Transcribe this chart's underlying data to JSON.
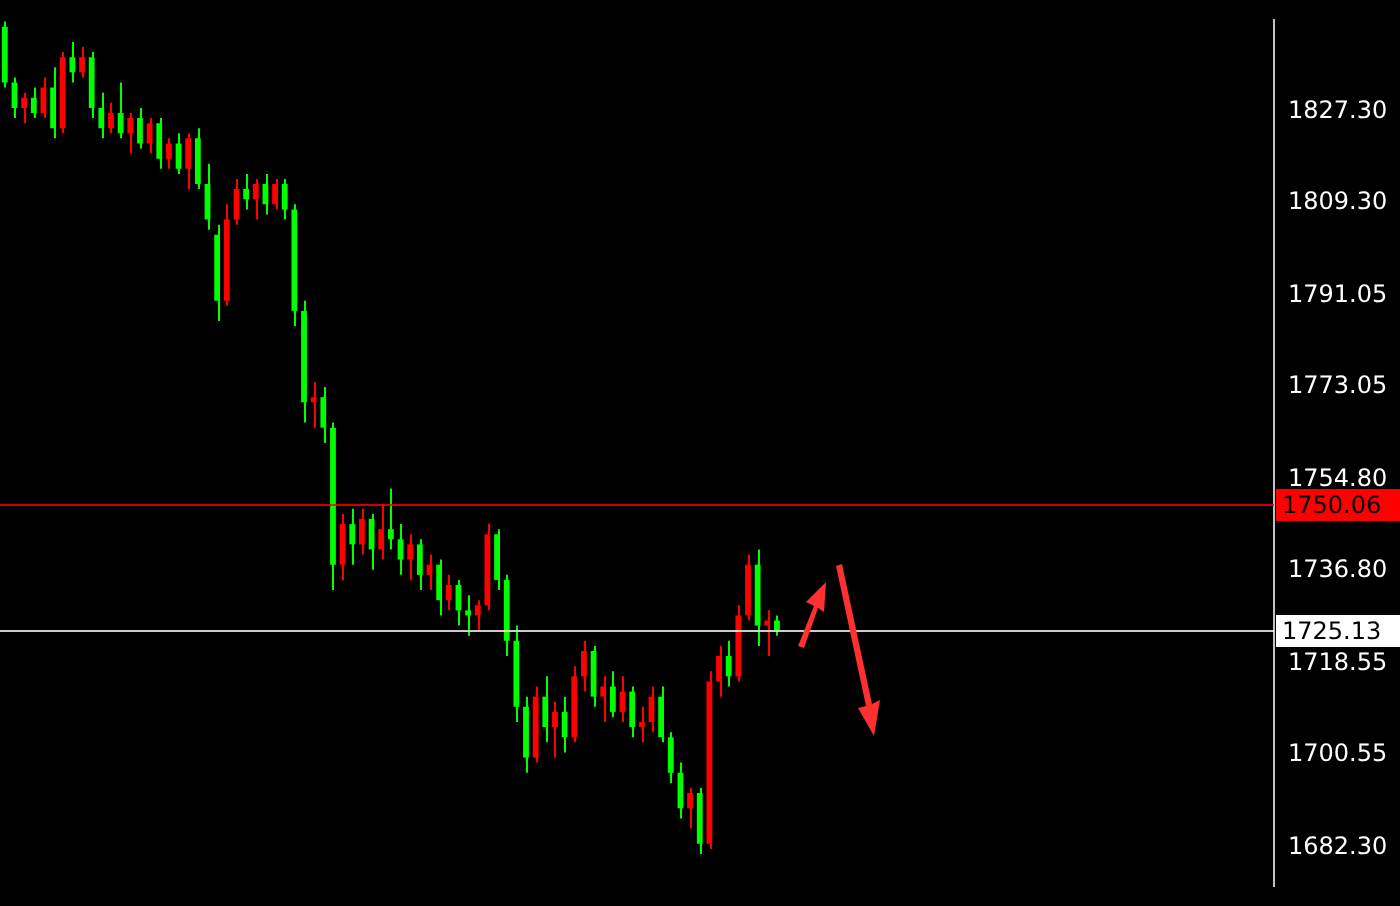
{
  "chart_data": {
    "type": "candlestick",
    "categories": [
      null,
      null,
      null,
      null,
      null,
      null,
      null,
      null,
      null,
      null,
      null,
      null,
      null,
      null,
      null,
      null,
      null,
      null,
      null,
      null,
      null,
      null,
      null,
      null,
      null,
      null,
      null,
      null,
      null,
      null,
      null,
      null,
      null,
      null,
      null,
      null,
      null,
      null,
      null,
      null,
      null,
      null,
      null,
      null,
      null,
      null,
      null,
      null,
      null,
      null,
      null,
      null,
      null,
      null,
      null,
      null,
      null,
      null,
      null,
      null,
      null,
      null,
      null,
      null,
      null,
      null,
      null,
      null,
      null,
      null,
      null,
      null,
      null,
      null,
      null,
      null,
      null,
      null,
      null,
      null,
      null,
      null,
      null,
      null,
      null,
      null,
      null,
      null,
      null,
      null,
      null,
      null,
      null,
      null,
      null,
      null,
      null,
      null,
      null,
      null,
      null,
      null,
      null,
      null,
      null,
      null,
      null,
      null,
      null,
      null,
      null,
      null,
      null,
      null,
      null,
      null,
      null,
      null,
      null,
      null,
      null,
      null,
      null,
      null,
      null,
      null,
      null,
      null,
      null,
      null,
      null,
      null
    ],
    "ohlc": [
      [
        1844,
        1845,
        1832,
        1833
      ],
      [
        1833,
        1834,
        1826,
        1828
      ],
      [
        1828,
        1831,
        1825,
        1830
      ],
      [
        1830,
        1832,
        1826,
        1827
      ],
      [
        1827,
        1834,
        1826,
        1832
      ],
      [
        1832,
        1836,
        1822,
        1824
      ],
      [
        1824,
        1839,
        1823,
        1838
      ],
      [
        1838,
        1841,
        1833,
        1835
      ],
      [
        1835,
        1840,
        1834,
        1838
      ],
      [
        1838,
        1839,
        1826,
        1828
      ],
      [
        1828,
        1831,
        1822,
        1824
      ],
      [
        1824,
        1829,
        1823,
        1827
      ],
      [
        1827,
        1833,
        1822,
        1823
      ],
      [
        1823,
        1827,
        1819,
        1826
      ],
      [
        1826,
        1828,
        1820,
        1821
      ],
      [
        1821,
        1826,
        1819,
        1825
      ],
      [
        1825,
        1826,
        1816,
        1818
      ],
      [
        1818,
        1822,
        1816,
        1821
      ],
      [
        1821,
        1823,
        1815,
        1816
      ],
      [
        1816,
        1823,
        1812,
        1822
      ],
      [
        1822,
        1824,
        1812,
        1813
      ],
      [
        1813,
        1817,
        1804,
        1806
      ],
      [
        1803,
        1805,
        1786,
        1790
      ],
      [
        1790,
        1809,
        1789,
        1806
      ],
      [
        1806,
        1814,
        1805,
        1812
      ],
      [
        1812,
        1815,
        1808,
        1810
      ],
      [
        1810,
        1814,
        1806,
        1813
      ],
      [
        1813,
        1815,
        1807,
        1809
      ],
      [
        1809,
        1814,
        1808,
        1813
      ],
      [
        1813,
        1814,
        1806,
        1808
      ],
      [
        1808,
        1809,
        1785,
        1788
      ],
      [
        1788,
        1790,
        1766,
        1770
      ],
      [
        1770,
        1774,
        1765,
        1771
      ],
      [
        1771,
        1773,
        1762,
        1765
      ],
      [
        1765,
        1766,
        1733,
        1738
      ],
      [
        1738,
        1748,
        1735,
        1746
      ],
      [
        1746,
        1749,
        1738,
        1742
      ],
      [
        1742,
        1749,
        1740,
        1747
      ],
      [
        1747,
        1748,
        1737,
        1741
      ],
      [
        1741,
        1750,
        1739,
        1745
      ],
      [
        1745,
        1753,
        1741,
        1743
      ],
      [
        1743,
        1746,
        1736,
        1739
      ],
      [
        1739,
        1744,
        1735,
        1742
      ],
      [
        1742,
        1743,
        1733,
        1736
      ],
      [
        1736,
        1740,
        1733,
        1738
      ],
      [
        1738,
        1739,
        1728,
        1731
      ],
      [
        1731,
        1736,
        1729,
        1734
      ],
      [
        1734,
        1735,
        1726,
        1729
      ],
      [
        1729,
        1732,
        1724,
        1728
      ],
      [
        1728,
        1731,
        1725,
        1730
      ],
      [
        1730,
        1746,
        1729,
        1744
      ],
      [
        1744,
        1745,
        1733,
        1735
      ],
      [
        1735,
        1736,
        1720,
        1723
      ],
      [
        1723,
        1726,
        1707,
        1710
      ],
      [
        1710,
        1712,
        1697,
        1700
      ],
      [
        1700,
        1714,
        1699,
        1712
      ],
      [
        1712,
        1716,
        1703,
        1706
      ],
      [
        1706,
        1711,
        1700,
        1709
      ],
      [
        1709,
        1712,
        1701,
        1704
      ],
      [
        1704,
        1718,
        1703,
        1716
      ],
      [
        1716,
        1723,
        1713,
        1721
      ],
      [
        1721,
        1722,
        1710,
        1712
      ],
      [
        1712,
        1716,
        1707,
        1714
      ],
      [
        1714,
        1717,
        1708,
        1709
      ],
      [
        1709,
        1716,
        1707,
        1713
      ],
      [
        1713,
        1714,
        1704,
        1706
      ],
      [
        1706,
        1710,
        1703,
        1707
      ],
      [
        1707,
        1714,
        1705,
        1712
      ],
      [
        1712,
        1714,
        1703,
        1704
      ],
      [
        1704,
        1705,
        1695,
        1697
      ],
      [
        1697,
        1699,
        1688,
        1690
      ],
      [
        1690,
        1694,
        1686,
        1693
      ],
      [
        1693,
        1694,
        1681,
        1683
      ],
      [
        1683,
        1717,
        1682,
        1715
      ],
      [
        1715,
        1722,
        1712,
        1720
      ],
      [
        1720,
        1723,
        1714,
        1716
      ],
      [
        1716,
        1730,
        1715,
        1728
      ],
      [
        1728,
        1740,
        1727,
        1738
      ],
      [
        1738,
        1741,
        1722,
        1726
      ],
      [
        1726,
        1729,
        1720,
        1727
      ],
      [
        1727,
        1728,
        1724,
        1725.13
      ],
      null,
      null,
      null,
      null,
      null,
      null,
      null,
      null,
      null,
      null,
      null,
      null,
      null,
      null,
      null,
      null,
      null,
      null,
      null,
      null,
      null,
      null,
      null,
      null,
      null,
      null,
      null,
      null,
      null,
      null,
      null,
      null,
      null,
      null,
      null,
      null,
      null,
      null,
      null,
      null,
      null,
      null,
      null,
      null,
      null,
      null,
      null,
      null,
      null,
      null,
      null
    ],
    "colors": [
      "#00ff00",
      "#00ff00",
      "#ff0000",
      "#00ff00",
      "#ff0000",
      "#00ff00",
      "#ff0000",
      "#00ff00",
      "#ff0000",
      "#00ff00",
      "#00ff00",
      "#ff0000",
      "#00ff00",
      "#ff0000",
      "#00ff00",
      "#ff0000",
      "#00ff00",
      "#ff0000",
      "#00ff00",
      "#ff0000",
      "#00ff00",
      "#00ff00",
      "#00ff00",
      "#ff0000",
      "#ff0000",
      "#00ff00",
      "#ff0000",
      "#00ff00",
      "#ff0000",
      "#00ff00",
      "#00ff00",
      "#00ff00",
      "#ff0000",
      "#00ff00",
      "#00ff00",
      "#ff0000",
      "#00ff00",
      "#ff0000",
      "#00ff00",
      "#ff0000",
      "#00ff00",
      "#00ff00",
      "#ff0000",
      "#00ff00",
      "#ff0000",
      "#00ff00",
      "#ff0000",
      "#00ff00",
      "#00ff00",
      "#ff0000",
      "#ff0000",
      "#00ff00",
      "#00ff00",
      "#00ff00",
      "#00ff00",
      "#ff0000",
      "#00ff00",
      "#ff0000",
      "#00ff00",
      "#ff0000",
      "#ff0000",
      "#00ff00",
      "#ff0000",
      "#00ff00",
      "#ff0000",
      "#00ff00",
      "#ff0000",
      "#ff0000",
      "#00ff00",
      "#00ff00",
      "#00ff00",
      "#ff0000",
      "#00ff00",
      "#ff0000",
      "#ff0000",
      "#00ff00",
      "#ff0000",
      "#ff0000",
      "#00ff00",
      "#ff0000",
      "#00ff00",
      null,
      null,
      null,
      null,
      null,
      null,
      null,
      null,
      null,
      null,
      null,
      null,
      null,
      null,
      null,
      null,
      null,
      null,
      null,
      null,
      null,
      null,
      null,
      null,
      null,
      null,
      null,
      null,
      null,
      null,
      null,
      null,
      null,
      null,
      null,
      null,
      null,
      null,
      null,
      null,
      null,
      null,
      null,
      null,
      null,
      null,
      null,
      null,
      null,
      null,
      null
    ],
    "ylim": [
      1674.77,
      1845.24
    ],
    "yticks": [
      {
        "value": 1827.3,
        "label": "1827.30"
      },
      {
        "value": 1809.3,
        "label": "1809.30"
      },
      {
        "value": 1791.05,
        "label": "1791.05"
      },
      {
        "value": 1773.05,
        "label": "1773.05"
      },
      {
        "value": 1754.8,
        "label": "1754.80"
      },
      {
        "value": 1736.8,
        "label": "1736.80"
      },
      {
        "value": 1718.55,
        "label": "1718.55"
      },
      {
        "value": 1700.55,
        "label": "1700.55"
      },
      {
        "value": 1682.3,
        "label": "1682.30"
      }
    ],
    "ref_lines": [
      {
        "axis": "y",
        "value": 1750.06,
        "label": "1750.06",
        "color": "#ff0000"
      },
      {
        "axis": "y",
        "value": 1725.13,
        "label": "1725.13",
        "color": "#ffffff"
      }
    ],
    "grid": false,
    "legend": false,
    "tick_labels": "y"
  }
}
